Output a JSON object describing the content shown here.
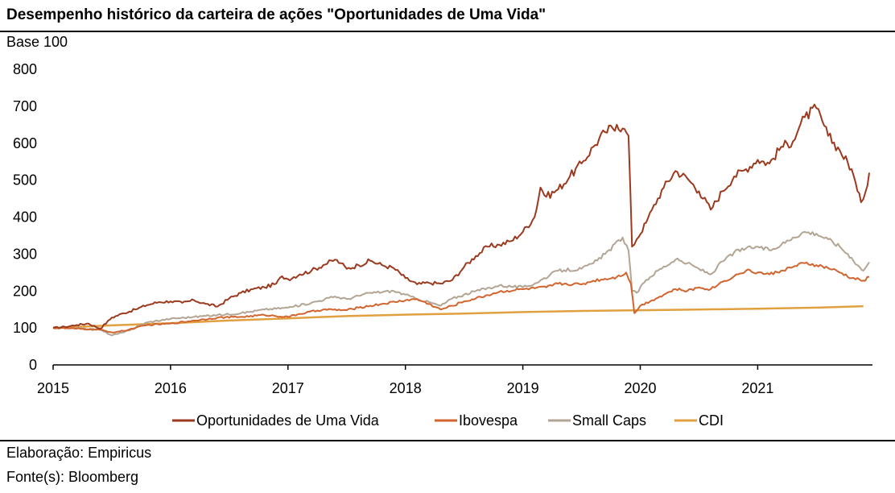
{
  "title": "Desempenho histórico da carteira de ações \"Oportunidades de Uma Vida\"",
  "unit_label": "Base 100",
  "footer": {
    "elaboration": "Elaboração: Empiricus",
    "source": "Fonte(s): Bloomberg"
  },
  "chart_data": {
    "type": "line",
    "title": "Desempenho histórico da carteira de ações \"Oportunidades de Uma Vida\"",
    "ylabel": "Base 100",
    "xlabel": "",
    "ylim": [
      0,
      800
    ],
    "xlim": [
      2015.0,
      2021.95
    ],
    "yticks": [
      0,
      100,
      200,
      300,
      400,
      500,
      600,
      700,
      800
    ],
    "xticks": [
      {
        "value": 2015,
        "label": "2015"
      },
      {
        "value": 2016,
        "label": "2016"
      },
      {
        "value": 2017,
        "label": "2017"
      },
      {
        "value": 2018,
        "label": "2018"
      },
      {
        "value": 2019,
        "label": "2019"
      },
      {
        "value": 2020,
        "label": "2020"
      },
      {
        "value": 2021,
        "label": "2021"
      }
    ],
    "legend_position": "bottom",
    "grid": false,
    "series": [
      {
        "name": "Oportunidades de Uma Vida",
        "color": "#9b3a1e",
        "points": [
          [
            2015.0,
            100
          ],
          [
            2015.1,
            103
          ],
          [
            2015.2,
            108
          ],
          [
            2015.3,
            112
          ],
          [
            2015.4,
            98
          ],
          [
            2015.5,
            128
          ],
          [
            2015.6,
            140
          ],
          [
            2015.7,
            150
          ],
          [
            2015.8,
            162
          ],
          [
            2015.9,
            170
          ],
          [
            2016.0,
            172
          ],
          [
            2016.1,
            168
          ],
          [
            2016.2,
            175
          ],
          [
            2016.3,
            165
          ],
          [
            2016.4,
            158
          ],
          [
            2016.5,
            180
          ],
          [
            2016.6,
            195
          ],
          [
            2016.7,
            205
          ],
          [
            2016.8,
            210
          ],
          [
            2016.9,
            220
          ],
          [
            2016.95,
            240
          ],
          [
            2017.0,
            232
          ],
          [
            2017.1,
            245
          ],
          [
            2017.2,
            255
          ],
          [
            2017.3,
            270
          ],
          [
            2017.4,
            285
          ],
          [
            2017.45,
            275
          ],
          [
            2017.5,
            260
          ],
          [
            2017.6,
            270
          ],
          [
            2017.7,
            282
          ],
          [
            2017.8,
            270
          ],
          [
            2017.9,
            262
          ],
          [
            2018.0,
            235
          ],
          [
            2018.1,
            218
          ],
          [
            2018.2,
            222
          ],
          [
            2018.3,
            220
          ],
          [
            2018.4,
            230
          ],
          [
            2018.5,
            265
          ],
          [
            2018.6,
            295
          ],
          [
            2018.7,
            320
          ],
          [
            2018.8,
            325
          ],
          [
            2018.9,
            335
          ],
          [
            2019.0,
            360
          ],
          [
            2019.1,
            400
          ],
          [
            2019.15,
            480
          ],
          [
            2019.2,
            455
          ],
          [
            2019.3,
            475
          ],
          [
            2019.4,
            510
          ],
          [
            2019.5,
            545
          ],
          [
            2019.6,
            590
          ],
          [
            2019.7,
            630
          ],
          [
            2019.8,
            650
          ],
          [
            2019.85,
            640
          ],
          [
            2019.9,
            620
          ],
          [
            2019.93,
            320
          ],
          [
            2019.97,
            340
          ],
          [
            2020.05,
            385
          ],
          [
            2020.1,
            420
          ],
          [
            2020.2,
            480
          ],
          [
            2020.3,
            525
          ],
          [
            2020.4,
            505
          ],
          [
            2020.5,
            470
          ],
          [
            2020.6,
            420
          ],
          [
            2020.7,
            470
          ],
          [
            2020.8,
            510
          ],
          [
            2020.9,
            530
          ],
          [
            2021.0,
            555
          ],
          [
            2021.1,
            545
          ],
          [
            2021.2,
            590
          ],
          [
            2021.3,
            605
          ],
          [
            2021.35,
            640
          ],
          [
            2021.4,
            670
          ],
          [
            2021.5,
            695
          ],
          [
            2021.55,
            660
          ],
          [
            2021.6,
            620
          ],
          [
            2021.7,
            580
          ],
          [
            2021.8,
            530
          ],
          [
            2021.85,
            470
          ],
          [
            2021.88,
            440
          ],
          [
            2021.92,
            470
          ],
          [
            2021.95,
            520
          ]
        ]
      },
      {
        "name": "Ibovespa",
        "color": "#d2642e",
        "points": [
          [
            2015.0,
            100
          ],
          [
            2015.2,
            98
          ],
          [
            2015.4,
            95
          ],
          [
            2015.5,
            88
          ],
          [
            2015.6,
            92
          ],
          [
            2015.8,
            108
          ],
          [
            2016.0,
            112
          ],
          [
            2016.2,
            120
          ],
          [
            2016.4,
            128
          ],
          [
            2016.6,
            130
          ],
          [
            2016.8,
            135
          ],
          [
            2017.0,
            130
          ],
          [
            2017.1,
            138
          ],
          [
            2017.3,
            150
          ],
          [
            2017.5,
            148
          ],
          [
            2017.6,
            155
          ],
          [
            2017.8,
            165
          ],
          [
            2018.0,
            175
          ],
          [
            2018.1,
            178
          ],
          [
            2018.2,
            165
          ],
          [
            2018.3,
            150
          ],
          [
            2018.4,
            160
          ],
          [
            2018.5,
            172
          ],
          [
            2018.6,
            180
          ],
          [
            2018.8,
            198
          ],
          [
            2019.0,
            205
          ],
          [
            2019.2,
            210
          ],
          [
            2019.3,
            220
          ],
          [
            2019.5,
            218
          ],
          [
            2019.6,
            228
          ],
          [
            2019.8,
            238
          ],
          [
            2019.88,
            250
          ],
          [
            2019.92,
            220
          ],
          [
            2019.95,
            140
          ],
          [
            2020.0,
            160
          ],
          [
            2020.1,
            175
          ],
          [
            2020.2,
            190
          ],
          [
            2020.3,
            205
          ],
          [
            2020.4,
            200
          ],
          [
            2020.5,
            210
          ],
          [
            2020.6,
            205
          ],
          [
            2020.7,
            225
          ],
          [
            2020.8,
            240
          ],
          [
            2020.9,
            255
          ],
          [
            2021.0,
            250
          ],
          [
            2021.1,
            245
          ],
          [
            2021.2,
            255
          ],
          [
            2021.3,
            265
          ],
          [
            2021.4,
            275
          ],
          [
            2021.5,
            270
          ],
          [
            2021.6,
            262
          ],
          [
            2021.7,
            250
          ],
          [
            2021.8,
            235
          ],
          [
            2021.9,
            228
          ],
          [
            2021.95,
            238
          ]
        ]
      },
      {
        "name": "Small Caps",
        "color": "#b3a594",
        "points": [
          [
            2015.0,
            100
          ],
          [
            2015.2,
            100
          ],
          [
            2015.4,
            95
          ],
          [
            2015.5,
            80
          ],
          [
            2015.6,
            88
          ],
          [
            2015.8,
            115
          ],
          [
            2016.0,
            125
          ],
          [
            2016.2,
            130
          ],
          [
            2016.4,
            135
          ],
          [
            2016.6,
            140
          ],
          [
            2016.8,
            150
          ],
          [
            2017.0,
            155
          ],
          [
            2017.2,
            168
          ],
          [
            2017.4,
            185
          ],
          [
            2017.5,
            178
          ],
          [
            2017.7,
            195
          ],
          [
            2017.9,
            200
          ],
          [
            2018.0,
            190
          ],
          [
            2018.1,
            178
          ],
          [
            2018.2,
            170
          ],
          [
            2018.3,
            160
          ],
          [
            2018.4,
            180
          ],
          [
            2018.6,
            200
          ],
          [
            2018.8,
            215
          ],
          [
            2019.0,
            210
          ],
          [
            2019.1,
            220
          ],
          [
            2019.3,
            255
          ],
          [
            2019.5,
            260
          ],
          [
            2019.6,
            275
          ],
          [
            2019.7,
            300
          ],
          [
            2019.85,
            345
          ],
          [
            2019.9,
            310
          ],
          [
            2019.93,
            200
          ],
          [
            2019.97,
            195
          ],
          [
            2020.05,
            230
          ],
          [
            2020.15,
            255
          ],
          [
            2020.3,
            285
          ],
          [
            2020.4,
            275
          ],
          [
            2020.5,
            260
          ],
          [
            2020.6,
            245
          ],
          [
            2020.7,
            280
          ],
          [
            2020.8,
            305
          ],
          [
            2020.9,
            315
          ],
          [
            2021.0,
            320
          ],
          [
            2021.1,
            310
          ],
          [
            2021.2,
            325
          ],
          [
            2021.3,
            345
          ],
          [
            2021.4,
            360
          ],
          [
            2021.5,
            355
          ],
          [
            2021.6,
            340
          ],
          [
            2021.7,
            320
          ],
          [
            2021.8,
            290
          ],
          [
            2021.85,
            270
          ],
          [
            2021.9,
            255
          ],
          [
            2021.95,
            278
          ]
        ]
      },
      {
        "name": "CDI",
        "color": "#e0a040",
        "points": [
          [
            2015.0,
            100
          ],
          [
            2015.5,
            107
          ],
          [
            2016.0,
            113
          ],
          [
            2016.5,
            120
          ],
          [
            2017.0,
            126
          ],
          [
            2017.5,
            132
          ],
          [
            2018.0,
            136
          ],
          [
            2018.5,
            139
          ],
          [
            2019.0,
            143
          ],
          [
            2019.5,
            146
          ],
          [
            2020.0,
            148
          ],
          [
            2020.5,
            150
          ],
          [
            2021.0,
            152
          ],
          [
            2021.5,
            155
          ],
          [
            2021.9,
            159
          ]
        ]
      }
    ]
  }
}
